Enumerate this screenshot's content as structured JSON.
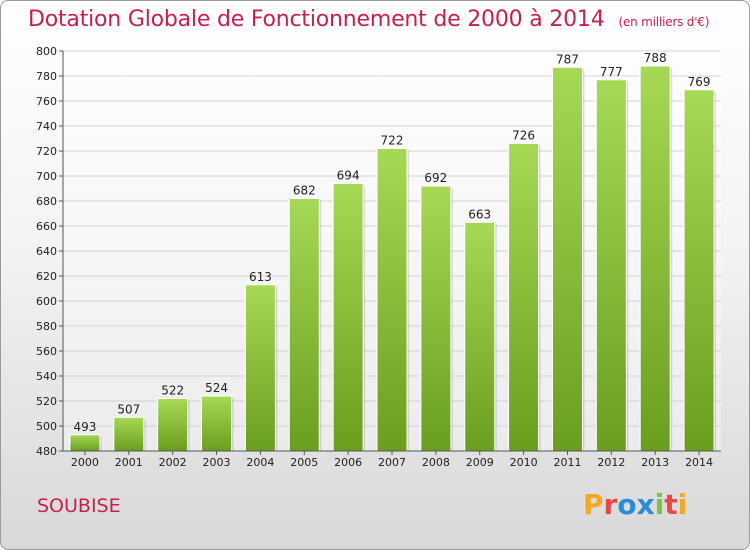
{
  "header": {
    "title": "Dotation Globale de Fonctionnement de 2000 à 2014",
    "subtitle": "(en milliers d'€)"
  },
  "footer": {
    "commune": "SOUBISE",
    "logo_text": "Proxiti"
  },
  "colors": {
    "title": "#c8204e",
    "bar_light": "#a6d955",
    "bar_dark": "#6a9e1d",
    "logo": [
      "#f5a623",
      "#e8474a",
      "#2c8bd6",
      "#2c8bd6",
      "#7cc242",
      "#e8474a",
      "#f5a623"
    ]
  },
  "chart_data": {
    "type": "bar",
    "title": "Dotation Globale de Fonctionnement de 2000 à 2014",
    "unit": "(en milliers d'€)",
    "xlabel": "",
    "ylabel": "",
    "categories": [
      "2000",
      "2001",
      "2002",
      "2003",
      "2004",
      "2005",
      "2006",
      "2007",
      "2008",
      "2009",
      "2010",
      "2011",
      "2012",
      "2013",
      "2014"
    ],
    "values": [
      493,
      507,
      522,
      524,
      613,
      682,
      694,
      722,
      692,
      663,
      726,
      787,
      777,
      788,
      769
    ],
    "ylim": [
      480,
      800
    ],
    "yticks": [
      480,
      500,
      520,
      540,
      560,
      580,
      600,
      620,
      640,
      660,
      680,
      700,
      720,
      740,
      760,
      780,
      800
    ],
    "grid": true
  }
}
